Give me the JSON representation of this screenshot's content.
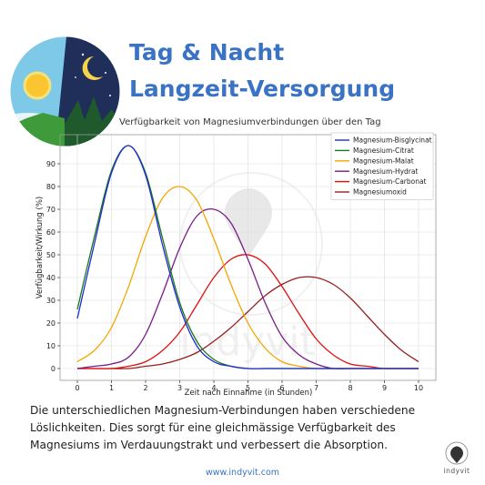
{
  "header": {
    "title_line1": "Tag & Nacht",
    "title_line2": "Langzeit-Versorgung"
  },
  "icon": "day-night-icon",
  "chart_data": {
    "type": "line",
    "title": "Verfügbarkeit von Magnesiumverbindungen über den Tag",
    "xlabel": "Zeit nach Einnahme (in Stunden)",
    "ylabel": "Verfügbarkeit/Wirkung (%)",
    "xlim": [
      0,
      10
    ],
    "ylim": [
      0,
      100
    ],
    "xticks": [
      "0",
      "1",
      "2",
      "3",
      "4",
      "5",
      "6",
      "7",
      "8",
      "9",
      "10"
    ],
    "yticks": [
      "0",
      "10",
      "20",
      "30",
      "40",
      "50",
      "60",
      "70",
      "80",
      "90"
    ],
    "grid": true,
    "legend_position": "top-right",
    "x": [
      0,
      0.5,
      1,
      1.5,
      2,
      2.5,
      3,
      3.5,
      4,
      4.5,
      5,
      5.5,
      6,
      6.5,
      7,
      7.5,
      8,
      8.5,
      9,
      9.5,
      10
    ],
    "series": [
      {
        "name": "Magnesium-Bisglycinat",
        "color": "#1f2bd6",
        "values": [
          22,
          55,
          86,
          98,
          85,
          54,
          27,
          10,
          3,
          1,
          0,
          0,
          0,
          0,
          0,
          0,
          0,
          0,
          0,
          0,
          0
        ]
      },
      {
        "name": "Magnesium-Citrat",
        "color": "#1a7a1a",
        "values": [
          26,
          58,
          87,
          98,
          86,
          57,
          29,
          12,
          4,
          1,
          0,
          0,
          0,
          0,
          0,
          0,
          0,
          0,
          0,
          0,
          0
        ]
      },
      {
        "name": "Magnesium-Malat",
        "color": "#f5a500",
        "values": [
          3,
          8,
          18,
          36,
          58,
          75,
          80,
          74,
          57,
          37,
          20,
          9,
          3,
          1,
          0,
          0,
          0,
          0,
          0,
          0,
          0
        ]
      },
      {
        "name": "Magnesium-Hydrat",
        "color": "#7a1a8c",
        "values": [
          0,
          1,
          2,
          5,
          15,
          33,
          53,
          67,
          70,
          64,
          48,
          29,
          14,
          6,
          2,
          0,
          0,
          0,
          0,
          0,
          0
        ]
      },
      {
        "name": "Magnesium-Carbonat",
        "color": "#e01010",
        "values": [
          0,
          0,
          0,
          1,
          3,
          8,
          16,
          28,
          40,
          48,
          50,
          46,
          36,
          24,
          13,
          6,
          2,
          1,
          0,
          0,
          0
        ]
      },
      {
        "name": "Magnesiumoxid",
        "color": "#9a1e1e",
        "values": [
          0,
          0,
          0,
          0,
          1,
          2,
          4,
          7,
          12,
          18,
          25,
          32,
          37,
          40,
          40,
          37,
          31,
          23,
          15,
          8,
          3
        ]
      }
    ]
  },
  "watermark": {
    "text": "indyvit"
  },
  "caption": "Die unterschiedlichen Magnesium-Verbindungen haben verschiedene Löslichkeiten. Dies sorgt für eine gleichmässige Verfügbarkeit des Magnesiums im Verdauungstrakt und verbessert die Absorption.",
  "footer": {
    "website": "www.indyvit.com",
    "logo_text": "indyvit"
  }
}
